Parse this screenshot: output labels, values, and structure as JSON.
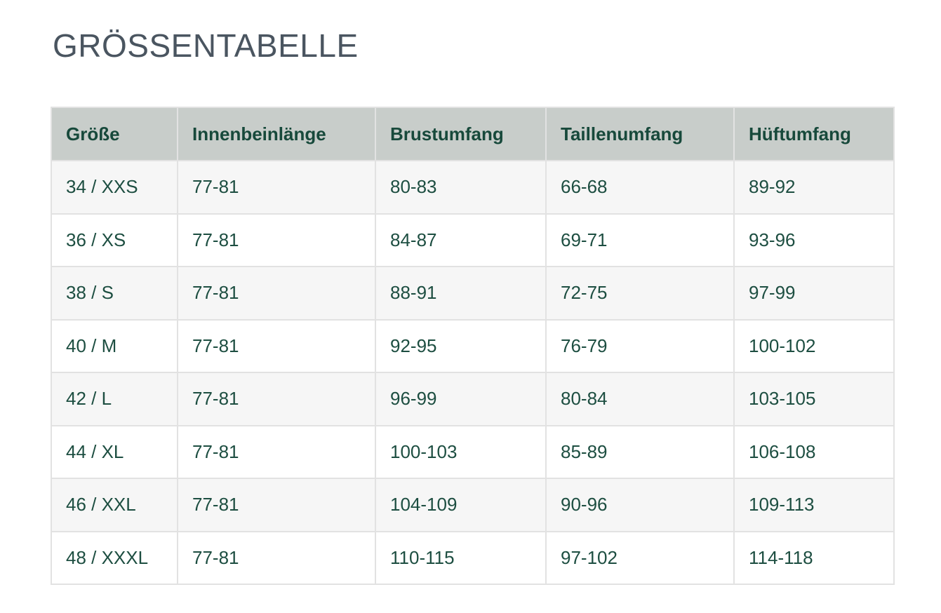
{
  "page": {
    "title": "GRÖSSENTABELLE"
  },
  "table": {
    "columns": [
      "Größe",
      "Innenbeinlänge",
      "Brustumfang",
      "Taillenumfang",
      "Hüftumfang"
    ],
    "rows": [
      [
        "34 / XXS",
        "77-81",
        "80-83",
        "66-68",
        "89-92"
      ],
      [
        "36 / XS",
        "77-81",
        "84-87",
        "69-71",
        "93-96"
      ],
      [
        "38 / S",
        "77-81",
        "88-91",
        "72-75",
        "97-99"
      ],
      [
        "40 / M",
        "77-81",
        "92-95",
        "76-79",
        "100-102"
      ],
      [
        "42 / L",
        "77-81",
        "96-99",
        "80-84",
        "103-105"
      ],
      [
        "44 / XL",
        "77-81",
        "100-103",
        "85-89",
        "106-108"
      ],
      [
        "46 / XXL",
        "77-81",
        "104-109",
        "90-96",
        "109-113"
      ],
      [
        "48 / XXXL",
        "77-81",
        "110-115",
        "97-102",
        "114-118"
      ]
    ]
  },
  "colors": {
    "title_text": "#4a5560",
    "header_background": "#c8cdca",
    "header_text": "#17493b",
    "cell_text": "#1d4e41",
    "row_odd_background": "#f6f6f6",
    "row_even_background": "#ffffff",
    "border": "#e2e2e2",
    "page_background": "#ffffff"
  }
}
